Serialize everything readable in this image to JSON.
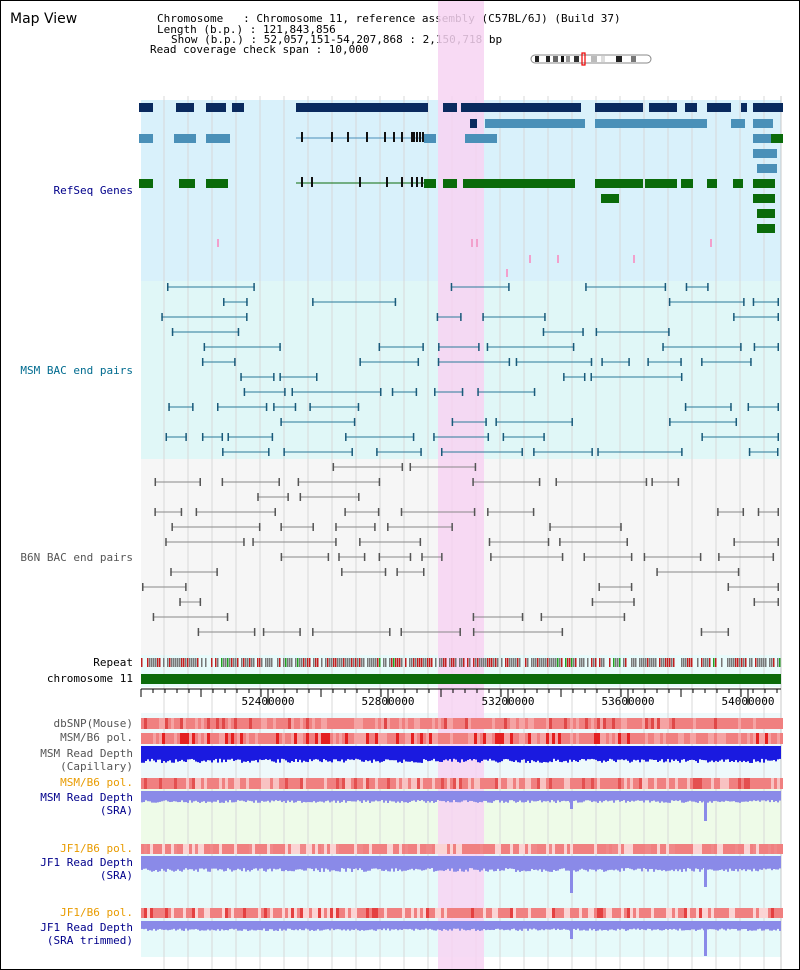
{
  "header": {
    "title": "Map View",
    "chromosome_line": "Chromosome   : Chromosome 11, reference assembly (C57BL/6J) (Build 37)",
    "length_line": "Length (b.p.) : 121,843,856",
    "show_line": "Show (b.p.) : 52,057,151-54,207,868 : 2,150,718 bp",
    "coverage_line": "Read coverage check span : 10,000"
  },
  "tracks": {
    "refseq": "RefSeq Genes",
    "msm_bac": "MSM BAC end pairs",
    "b6n_bac": "B6N BAC end pairs",
    "repeat": "Repeat",
    "chromosome": "chromosome 11",
    "dbsnp": "dbSNP(Mouse)",
    "msm_b6_pol_1": "MSM/B6 pol.",
    "msm_depth_cap_1": "MSM Read Depth",
    "msm_depth_cap_2": "(Capillary)",
    "msm_b6_pol_2": "MSM/B6 pol.",
    "msm_depth_sra_1": "MSM Read Depth",
    "msm_depth_sra_2": "(SRA)",
    "jf1_pol_1": "JF1/B6 pol.",
    "jf1_depth_1": "JF1 Read Depth",
    "jf1_depth_2": "(SRA)",
    "jf1_pol_2": "JF1/B6 pol.",
    "jf1_trim_1": "JF1 Read Depth",
    "jf1_trim_2": "(SRA trimmed)"
  },
  "axis_ticks": [
    "52400000",
    "52800000",
    "53200000",
    "53600000",
    "54000000"
  ],
  "colors": {
    "refseq_label": "#00008b",
    "msm_label": "#006b8f",
    "b6n_label": "#555555",
    "pol_label_orange": "#e89b00",
    "depth_label": "#00008b",
    "highlight": "#f7d3f2",
    "gene_dark": "#0a2a5e",
    "gene_mid": "#4a90b8",
    "gene_green": "#0a6b0a",
    "chromosome_bar": "#0a6b0a"
  }
}
